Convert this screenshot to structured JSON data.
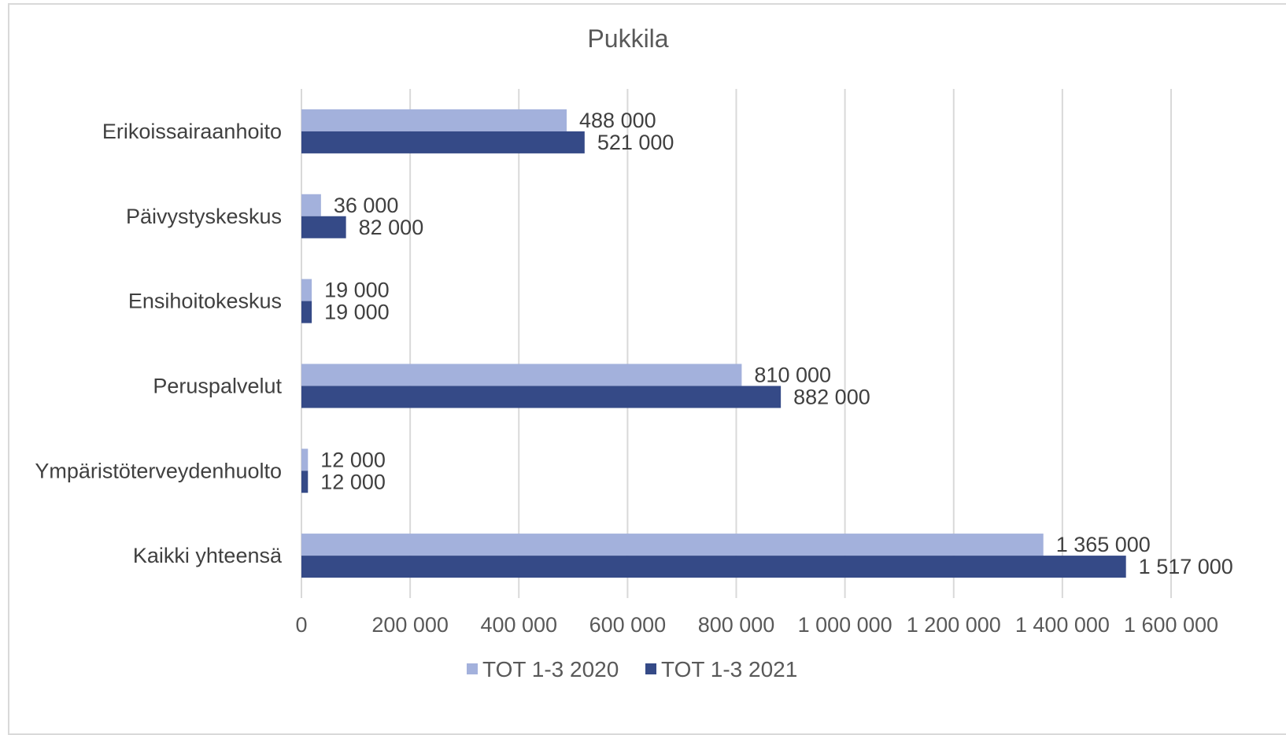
{
  "chart_data": {
    "type": "bar",
    "orientation": "horizontal",
    "title": "Pukkila",
    "categories": [
      "Erikoissairaanhoito",
      "Päivystyskeskus",
      "Ensihoitokeskus",
      "Peruspalvelut",
      "Ympäristöterveydenhuolto",
      "Kaikki yhteensä"
    ],
    "series": [
      {
        "name": "TOT 1-3 2020",
        "color": "#a3b1dc",
        "values": [
          488000,
          36000,
          19000,
          810000,
          12000,
          1365000
        ],
        "labels": [
          "488 000",
          "36 000",
          "19 000",
          "810 000",
          "12 000",
          "1 365 000"
        ]
      },
      {
        "name": "TOT 1-3 2021",
        "color": "#354a87",
        "values": [
          521000,
          82000,
          19000,
          882000,
          12000,
          1517000
        ],
        "labels": [
          "521 000",
          "82 000",
          "19 000",
          "882 000",
          "12 000",
          "1 517 000"
        ]
      }
    ],
    "xlim": [
      0,
      1600000
    ],
    "xticks": [
      0,
      200000,
      400000,
      600000,
      800000,
      1000000,
      1200000,
      1400000,
      1600000
    ],
    "xtick_labels": [
      "0",
      "200 000",
      "400 000",
      "600 000",
      "800 000",
      "1 000 000",
      "1 200 000",
      "1 400 000",
      "1 600 000"
    ],
    "xlabel": "",
    "ylabel": "",
    "grid": true,
    "legend": "bottom",
    "gridline_color": "#d9d9d9"
  }
}
